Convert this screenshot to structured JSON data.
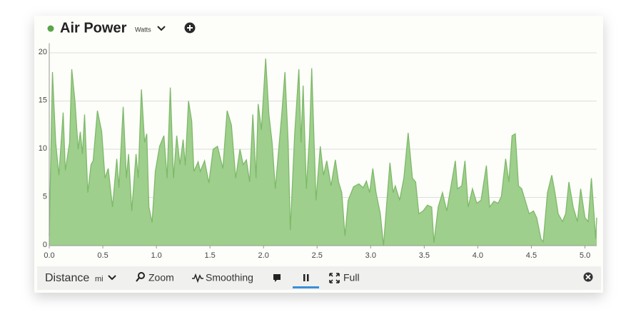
{
  "chart_data": {
    "type": "area",
    "title": "Air Power",
    "y_unit": "Watts",
    "x_label": "Distance",
    "x_unit": "mi",
    "color": "#9fcf8c",
    "line_color": "#7db96a",
    "marker_color": "#5aa548",
    "grid": true,
    "xlim": [
      0,
      5.11
    ],
    "ylim": [
      0,
      21
    ],
    "xticks": [
      {
        "value": 0,
        "label": "0.0"
      },
      0.5,
      {
        "value": 1,
        "label": "1.0"
      },
      1.5,
      {
        "value": 2,
        "label": "2.0"
      },
      2.5,
      {
        "value": 3,
        "label": "3.0"
      },
      3.5,
      {
        "value": 4,
        "label": "4.0"
      },
      4.5,
      {
        "value": 5,
        "label": "5.0"
      }
    ],
    "yticks": [
      0,
      5,
      10,
      15,
      20
    ],
    "x": [
      0,
      0.03,
      0.06,
      0.09,
      0.13,
      0.15,
      0.19,
      0.21,
      0.24,
      0.27,
      0.29,
      0.31,
      0.33,
      0.36,
      0.39,
      0.41,
      0.45,
      0.49,
      0.52,
      0.55,
      0.59,
      0.63,
      0.65,
      0.69,
      0.72,
      0.74,
      0.77,
      0.81,
      0.83,
      0.86,
      0.89,
      0.91,
      0.93,
      0.96,
      0.99,
      1.03,
      1.07,
      1.1,
      1.13,
      1.16,
      1.19,
      1.22,
      1.25,
      1.27,
      1.3,
      1.33,
      1.35,
      1.39,
      1.41,
      1.45,
      1.49,
      1.53,
      1.57,
      1.62,
      1.66,
      1.7,
      1.74,
      1.78,
      1.81,
      1.84,
      1.87,
      1.9,
      1.93,
      1.95,
      1.98,
      2.02,
      2.05,
      2.08,
      2.11,
      2.17,
      2.2,
      2.23,
      2.25,
      2.29,
      2.33,
      2.35,
      2.37,
      2.4,
      2.43,
      2.45,
      2.49,
      2.53,
      2.56,
      2.59,
      2.63,
      2.67,
      2.7,
      2.73,
      2.76,
      2.79,
      2.84,
      2.89,
      2.93,
      2.96,
      2.99,
      3.02,
      3.05,
      3.09,
      3.12,
      3.15,
      3.18,
      3.21,
      3.23,
      3.27,
      3.31,
      3.35,
      3.39,
      3.42,
      3.45,
      3.49,
      3.53,
      3.57,
      3.59,
      3.63,
      3.67,
      3.71,
      3.75,
      3.79,
      3.81,
      3.85,
      3.88,
      3.91,
      3.95,
      3.99,
      4.03,
      4.08,
      4.11,
      4.15,
      4.19,
      4.22,
      4.26,
      4.29,
      4.32,
      4.35,
      4.38,
      4.41,
      4.45,
      4.48,
      4.52,
      4.55,
      4.59,
      4.61,
      4.65,
      4.69,
      4.72,
      4.75,
      4.79,
      4.82,
      4.85,
      4.89,
      4.93,
      4.96,
      5,
      5.03,
      5.06,
      5.08,
      5.1,
      5.11
    ],
    "values": [
      1,
      18,
      10.7,
      7.3,
      13.8,
      7.8,
      10.7,
      18.3,
      15,
      10,
      11.8,
      9.5,
      13.6,
      5.5,
      8.4,
      8.8,
      14,
      11.8,
      7,
      8,
      4,
      9,
      6,
      14.4,
      7,
      9.5,
      3.6,
      9.5,
      7,
      16.2,
      10.7,
      11.6,
      4,
      2.4,
      7.7,
      10.3,
      11.4,
      7,
      16.4,
      7,
      11.4,
      8.4,
      11,
      8.3,
      15,
      12.9,
      7.7,
      8.7,
      7.7,
      8.8,
      6.5,
      10,
      10.3,
      8,
      14,
      12.5,
      7,
      10,
      8.4,
      8.9,
      6.6,
      13.6,
      7,
      14.7,
      12,
      19.4,
      13.6,
      10.7,
      5.9,
      13.6,
      18,
      10.7,
      1.6,
      11.4,
      18.3,
      10.7,
      16.6,
      5.9,
      11.4,
      18.4,
      4.7,
      10.3,
      7.3,
      8.8,
      6.2,
      8.9,
      6.6,
      5.5,
      1,
      4.7,
      6.1,
      6.4,
      6,
      6.7,
      5.5,
      8,
      5.5,
      3.3,
      0,
      4.4,
      8.6,
      5.5,
      6.2,
      4.7,
      7,
      11.7,
      7,
      6.6,
      3.3,
      3.6,
      4.2,
      4,
      0.3,
      4,
      5.5,
      3.6,
      6.2,
      8.8,
      5.9,
      6.2,
      8.8,
      4,
      5.9,
      4.4,
      4.7,
      8.3,
      4,
      4.6,
      4.4,
      5.1,
      9,
      6.6,
      11.4,
      11.6,
      6.2,
      5.9,
      4.4,
      3.3,
      3.6,
      2.9,
      0.7,
      0.4,
      5.5,
      7.3,
      5.5,
      3.3,
      2.5,
      3.3,
      6.6,
      4,
      2.5,
      5.9,
      2.9,
      2.5,
      7,
      4,
      0.7,
      2.9
    ]
  },
  "toolbar": {
    "zoom": "Zoom",
    "smoothing": "Smoothing",
    "full": "Full"
  }
}
